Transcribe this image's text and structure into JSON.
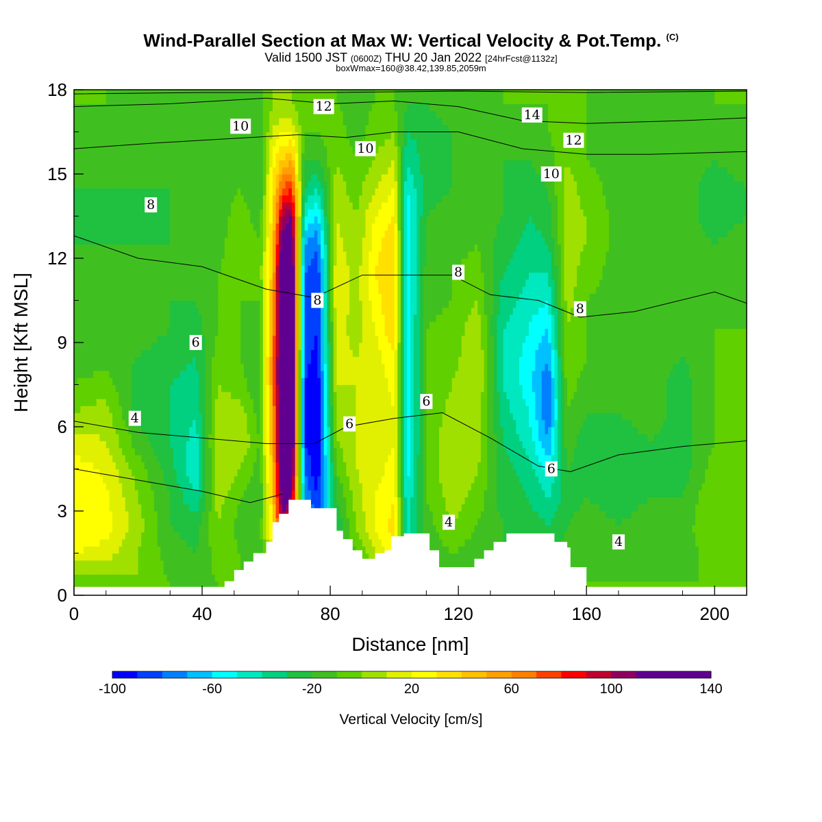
{
  "header": {
    "title": "Wind-Parallel Section at Max W: Vertical Velocity & Pot.Temp.",
    "copyright": "(C)",
    "valid_a": "Valid 1500 JST",
    "valid_b": "(0600Z)",
    "valid_c": "THU 20 Jan 2022",
    "valid_d": "[24hrFcst@1132z]",
    "boxinfo": "boxWmax=160@38.42,139.85,2059m"
  },
  "chart_data": {
    "type": "heatmap",
    "xlabel": "Distance [nm]",
    "ylabel": "Height [Kft MSL]",
    "xlim": [
      0,
      210
    ],
    "ylim": [
      0,
      18
    ],
    "xticks": [
      0,
      40,
      80,
      120,
      160,
      200
    ],
    "yticks": [
      0,
      3,
      6,
      9,
      12,
      15,
      18
    ],
    "colorbar": {
      "title": "Vertical Velocity [cm/s]",
      "min": -100,
      "max": 140,
      "step": 10,
      "tick_values": [
        -100,
        -60,
        -20,
        20,
        60,
        100,
        140
      ],
      "tick_labels": [
        "-100",
        "-60",
        "-20",
        "20",
        "60",
        "100",
        "140"
      ],
      "colors": [
        "#0000ff",
        "#0040ff",
        "#0080ff",
        "#00c0ff",
        "#00ffff",
        "#00e8c0",
        "#00d080",
        "#20c040",
        "#40c020",
        "#60d000",
        "#a0e000",
        "#e0f000",
        "#ffff00",
        "#ffe000",
        "#ffc000",
        "#ffa000",
        "#ff8000",
        "#ff4000",
        "#ff0000",
        "#c00030",
        "#900060",
        "#600090"
      ]
    },
    "vertical_velocity_columns": [
      {
        "x": 0,
        "w": [
          -10,
          20,
          30,
          28,
          25,
          15,
          0,
          -10,
          -15,
          -10,
          -15,
          -20,
          -20,
          -25,
          -20,
          -15,
          -15,
          -10
        ]
      },
      {
        "x": 10,
        "w": [
          -5,
          15,
          25,
          22,
          18,
          10,
          5,
          -5,
          -15,
          -10,
          -15,
          -20,
          -20,
          -25,
          -20,
          -15,
          -15,
          -10
        ]
      },
      {
        "x": 20,
        "w": [
          0,
          0,
          5,
          0,
          -5,
          -15,
          -25,
          -25,
          -20,
          -15,
          -20,
          -20,
          -20,
          -25,
          -20,
          -15,
          -15,
          -15
        ]
      },
      {
        "x": 30,
        "w": [
          -10,
          -15,
          -20,
          -20,
          -25,
          -30,
          -30,
          -30,
          -25,
          -20,
          -20,
          -20,
          -20,
          -20,
          -20,
          -15,
          -15,
          -15
        ]
      },
      {
        "x": 38,
        "w": [
          -15,
          -20,
          -25,
          -40,
          -50,
          -45,
          -40,
          -35,
          -30,
          -25,
          -20,
          -20,
          -20,
          -20,
          -20,
          -20,
          -15,
          -15
        ]
      },
      {
        "x": 45,
        "w": [
          -10,
          -5,
          0,
          5,
          10,
          10,
          5,
          0,
          -5,
          -10,
          -10,
          -10,
          -15,
          -15,
          -15,
          -15,
          -15,
          -15
        ]
      },
      {
        "x": 52,
        "w": [
          -10,
          -10,
          -15,
          -10,
          0,
          10,
          5,
          -5,
          -10,
          -10,
          -10,
          -5,
          0,
          -5,
          -10,
          -15,
          -15,
          -15
        ]
      },
      {
        "x": 58,
        "w": [
          -10,
          -15,
          -15,
          -20,
          -15,
          -10,
          -15,
          -20,
          -20,
          -15,
          -10,
          -5,
          -10,
          -15,
          -20,
          -20,
          -15,
          -15
        ]
      },
      {
        "x": 62,
        "w": [
          -10,
          20,
          30,
          40,
          45,
          50,
          55,
          60,
          60,
          55,
          50,
          45,
          40,
          35,
          30,
          25,
          10,
          0
        ]
      },
      {
        "x": 65,
        "w": [
          -10,
          80,
          100,
          120,
          130,
          140,
          140,
          140,
          140,
          140,
          140,
          140,
          120,
          100,
          70,
          40,
          20,
          0
        ]
      },
      {
        "x": 68,
        "w": [
          -10,
          40,
          80,
          110,
          130,
          140,
          140,
          140,
          140,
          140,
          140,
          140,
          130,
          110,
          80,
          50,
          20,
          0
        ]
      },
      {
        "x": 72,
        "w": [
          -20,
          -40,
          -60,
          -70,
          -80,
          -90,
          -90,
          -90,
          -85,
          -80,
          -80,
          -80,
          -70,
          -50,
          -30,
          -20,
          -10,
          -10
        ]
      },
      {
        "x": 76,
        "w": [
          -20,
          -60,
          -80,
          -90,
          -100,
          -100,
          -100,
          -100,
          -95,
          -90,
          -90,
          -90,
          -80,
          -60,
          -40,
          -20,
          -10,
          -10
        ]
      },
      {
        "x": 82,
        "w": [
          -20,
          -25,
          -30,
          -20,
          -10,
          0,
          5,
          10,
          15,
          15,
          20,
          20,
          15,
          10,
          5,
          0,
          -5,
          -10
        ]
      },
      {
        "x": 88,
        "w": [
          -20,
          -10,
          0,
          5,
          10,
          10,
          10,
          10,
          10,
          5,
          5,
          5,
          0,
          0,
          -5,
          -10,
          -15,
          -15
        ]
      },
      {
        "x": 94,
        "w": [
          -15,
          10,
          20,
          20,
          15,
          10,
          10,
          10,
          15,
          20,
          25,
          30,
          25,
          20,
          10,
          0,
          -5,
          -10
        ]
      },
      {
        "x": 100,
        "w": [
          -15,
          25,
          35,
          30,
          25,
          20,
          20,
          25,
          30,
          40,
          40,
          40,
          40,
          30,
          20,
          10,
          0,
          -10
        ]
      },
      {
        "x": 104,
        "w": [
          -20,
          -40,
          -45,
          -50,
          -55,
          -60,
          -60,
          -60,
          -60,
          -60,
          -60,
          -60,
          -60,
          -60,
          -50,
          -40,
          -30,
          -20
        ]
      },
      {
        "x": 110,
        "w": [
          -25,
          -20,
          -15,
          -10,
          -10,
          -10,
          -10,
          -10,
          -10,
          -10,
          -15,
          -15,
          -20,
          -20,
          -25,
          -25,
          -25,
          -20
        ]
      },
      {
        "x": 118,
        "w": [
          -20,
          -10,
          0,
          5,
          10,
          10,
          5,
          0,
          -5,
          -5,
          -10,
          -10,
          -15,
          -15,
          -20,
          -20,
          -20,
          -15
        ]
      },
      {
        "x": 126,
        "w": [
          -20,
          -15,
          -10,
          -5,
          0,
          5,
          5,
          10,
          10,
          5,
          0,
          -5,
          -10,
          -15,
          -15,
          -15,
          -15,
          -15
        ]
      },
      {
        "x": 134,
        "w": [
          -15,
          -20,
          -20,
          -25,
          -25,
          -30,
          -35,
          -40,
          -40,
          -40,
          -35,
          -30,
          -25,
          -20,
          -20,
          -20,
          -15,
          -10
        ]
      },
      {
        "x": 142,
        "w": [
          -15,
          -20,
          -25,
          -30,
          -35,
          -45,
          -50,
          -55,
          -55,
          -50,
          -45,
          -40,
          -35,
          -30,
          -25,
          -20,
          -15,
          -10
        ]
      },
      {
        "x": 148,
        "w": [
          -15,
          -25,
          -30,
          -40,
          -55,
          -70,
          -80,
          -80,
          -70,
          -60,
          -50,
          -40,
          -30,
          -25,
          -20,
          -15,
          -10,
          -10
        ]
      },
      {
        "x": 154,
        "w": [
          -10,
          -15,
          -20,
          -25,
          -20,
          -15,
          -10,
          -5,
          0,
          0,
          5,
          5,
          5,
          5,
          5,
          0,
          -5,
          -5
        ]
      },
      {
        "x": 160,
        "w": [
          -10,
          -10,
          -15,
          -20,
          -25,
          -25,
          -20,
          -15,
          -10,
          -10,
          -10,
          -5,
          0,
          0,
          -5,
          -10,
          -10,
          -10
        ]
      },
      {
        "x": 170,
        "w": [
          -10,
          -15,
          -20,
          -25,
          -25,
          -25,
          -20,
          -15,
          -15,
          -15,
          -15,
          -15,
          -15,
          -15,
          -15,
          -15,
          -15,
          -15
        ]
      },
      {
        "x": 180,
        "w": [
          -10,
          -15,
          -15,
          -20,
          -20,
          -20,
          -15,
          -15,
          -15,
          -15,
          -15,
          -15,
          -15,
          -15,
          -15,
          -15,
          -15,
          -15
        ]
      },
      {
        "x": 190,
        "w": [
          -10,
          -15,
          -15,
          -20,
          -25,
          -25,
          -25,
          -25,
          -20,
          -15,
          -15,
          -15,
          -15,
          -15,
          -15,
          -15,
          -15,
          -15
        ]
      },
      {
        "x": 200,
        "w": [
          -10,
          -5,
          0,
          0,
          -5,
          -10,
          -10,
          -10,
          -10,
          -10,
          -15,
          -15,
          -20,
          -25,
          -25,
          -20,
          -15,
          -10
        ]
      },
      {
        "x": 210,
        "w": [
          -10,
          -10,
          -10,
          -10,
          -10,
          -10,
          -10,
          -10,
          -10,
          -10,
          -15,
          -15,
          -15,
          -20,
          -20,
          -15,
          -10,
          -10
        ]
      }
    ],
    "terrain": [
      [
        0,
        0.3
      ],
      [
        44,
        0.3
      ],
      [
        47,
        0.5
      ],
      [
        50,
        0.9
      ],
      [
        53,
        1.2
      ],
      [
        56,
        1.5
      ],
      [
        60,
        1.9
      ],
      [
        62,
        2.6
      ],
      [
        64,
        2.9
      ],
      [
        67,
        3.4
      ],
      [
        71,
        3.4
      ],
      [
        74,
        3.1
      ],
      [
        80,
        3.1
      ],
      [
        82,
        2.3
      ],
      [
        84,
        2.0
      ],
      [
        87,
        1.6
      ],
      [
        90,
        1.3
      ],
      [
        94,
        1.5
      ],
      [
        97,
        1.6
      ],
      [
        99,
        2.1
      ],
      [
        103,
        2.2
      ],
      [
        108,
        2.2
      ],
      [
        111,
        1.6
      ],
      [
        114,
        1.0
      ],
      [
        121,
        1.0
      ],
      [
        125,
        1.3
      ],
      [
        128,
        1.6
      ],
      [
        131,
        1.9
      ],
      [
        135,
        2.2
      ],
      [
        147,
        2.2
      ],
      [
        150,
        1.9
      ],
      [
        154,
        1.7
      ],
      [
        155,
        1.0
      ],
      [
        159,
        1.0
      ],
      [
        160,
        0.3
      ],
      [
        210,
        0.3
      ]
    ],
    "theta_contours": [
      {
        "label": "4",
        "points": [
          [
            0,
            4.5
          ],
          [
            20,
            4.1
          ],
          [
            40,
            3.7
          ],
          [
            55,
            3.3
          ],
          [
            65,
            3.6
          ]
        ]
      },
      {
        "label": "6",
        "points": [
          [
            0,
            6.2
          ],
          [
            20,
            5.8
          ],
          [
            40,
            5.6
          ],
          [
            60,
            5.4
          ],
          [
            75,
            5.4
          ],
          [
            85,
            6.0
          ],
          [
            100,
            6.3
          ],
          [
            115,
            6.5
          ],
          [
            130,
            5.6
          ],
          [
            145,
            4.6
          ],
          [
            155,
            4.4
          ],
          [
            170,
            5.0
          ],
          [
            190,
            5.3
          ],
          [
            210,
            5.5
          ]
        ]
      },
      {
        "label": "8",
        "points": [
          [
            0,
            12.8
          ],
          [
            20,
            12.0
          ],
          [
            40,
            11.7
          ],
          [
            60,
            10.9
          ],
          [
            75,
            10.6
          ],
          [
            90,
            11.4
          ],
          [
            105,
            11.4
          ],
          [
            118,
            11.4
          ],
          [
            130,
            10.7
          ],
          [
            145,
            10.5
          ],
          [
            158,
            9.9
          ],
          [
            175,
            10.1
          ],
          [
            200,
            10.8
          ],
          [
            210,
            10.4
          ]
        ]
      },
      {
        "label": "10",
        "points": [
          [
            0,
            15.9
          ],
          [
            25,
            16.1
          ],
          [
            40,
            16.2
          ],
          [
            55,
            16.3
          ],
          [
            70,
            16.4
          ],
          [
            85,
            16.3
          ],
          [
            100,
            16.5
          ],
          [
            120,
            16.5
          ],
          [
            140,
            15.9
          ],
          [
            160,
            15.7
          ],
          [
            180,
            15.7
          ],
          [
            210,
            15.8
          ]
        ]
      },
      {
        "label": "12",
        "points": [
          [
            0,
            17.4
          ],
          [
            30,
            17.5
          ],
          [
            60,
            17.7
          ],
          [
            80,
            17.5
          ],
          [
            100,
            17.6
          ],
          [
            120,
            17.4
          ],
          [
            140,
            16.9
          ],
          [
            160,
            16.8
          ],
          [
            190,
            16.9
          ],
          [
            210,
            17.0
          ]
        ]
      },
      {
        "label": "14",
        "points": [
          [
            0,
            17.85
          ],
          [
            40,
            17.9
          ],
          [
            80,
            17.9
          ],
          [
            120,
            17.95
          ],
          [
            160,
            17.9
          ],
          [
            210,
            17.95
          ]
        ]
      }
    ],
    "contour_labels": [
      {
        "text": "10",
        "x": 52,
        "y": 16.7
      },
      {
        "text": "12",
        "x": 78,
        "y": 17.4
      },
      {
        "text": "10",
        "x": 91,
        "y": 15.9
      },
      {
        "text": "14",
        "x": 143,
        "y": 17.1
      },
      {
        "text": "12",
        "x": 156,
        "y": 16.2
      },
      {
        "text": "10",
        "x": 149,
        "y": 15.0
      },
      {
        "text": "8",
        "x": 24,
        "y": 13.9
      },
      {
        "text": "8",
        "x": 76,
        "y": 10.5
      },
      {
        "text": "8",
        "x": 120,
        "y": 11.5
      },
      {
        "text": "8",
        "x": 158,
        "y": 10.2
      },
      {
        "text": "6",
        "x": 38,
        "y": 9.0
      },
      {
        "text": "6",
        "x": 86,
        "y": 6.1
      },
      {
        "text": "6",
        "x": 110,
        "y": 6.9
      },
      {
        "text": "6",
        "x": 149,
        "y": 4.5
      },
      {
        "text": "4",
        "x": 19,
        "y": 6.3
      },
      {
        "text": "4",
        "x": 117,
        "y": 2.6
      },
      {
        "text": "4",
        "x": 170,
        "y": 1.9
      }
    ]
  }
}
